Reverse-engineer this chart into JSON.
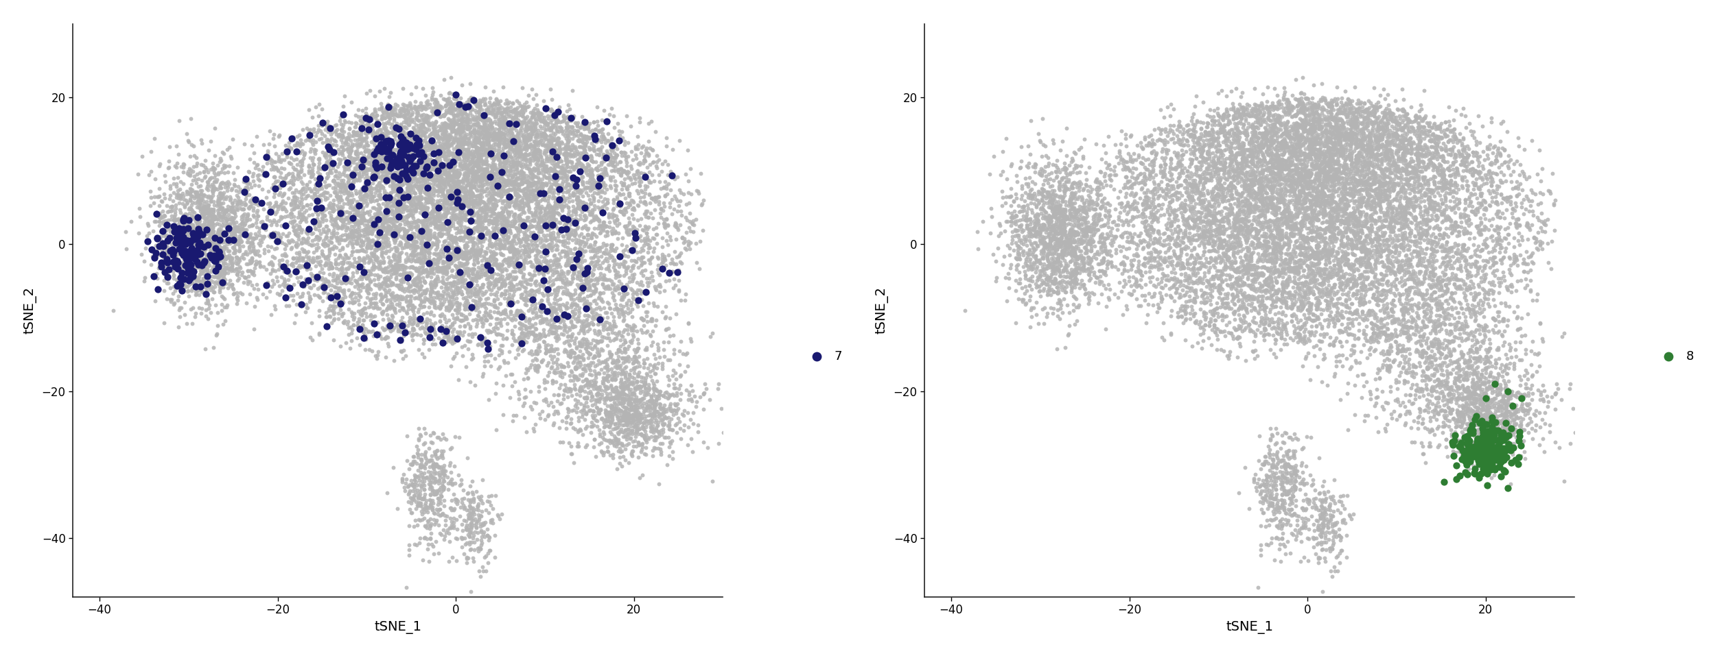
{
  "seed": 42,
  "background_color": "#b4b4b4",
  "background_alpha": 0.85,
  "background_size": 18,
  "highlight_color_1": "#191970",
  "highlight_color_2": "#2e7d32",
  "highlight_alpha": 1.0,
  "highlight_size": 55,
  "legend_label_1": "7",
  "legend_label_2": "8",
  "xlabel": "tSNE_1",
  "ylabel": "tSNE_2",
  "xlim": [
    -43,
    30
  ],
  "ylim": [
    -48,
    30
  ],
  "xticks": [
    -40,
    -20,
    0,
    20
  ],
  "yticks": [
    -40,
    -20,
    0,
    20
  ],
  "background_color_fig": "#ffffff",
  "tick_label_size": 12,
  "axis_label_size": 14
}
